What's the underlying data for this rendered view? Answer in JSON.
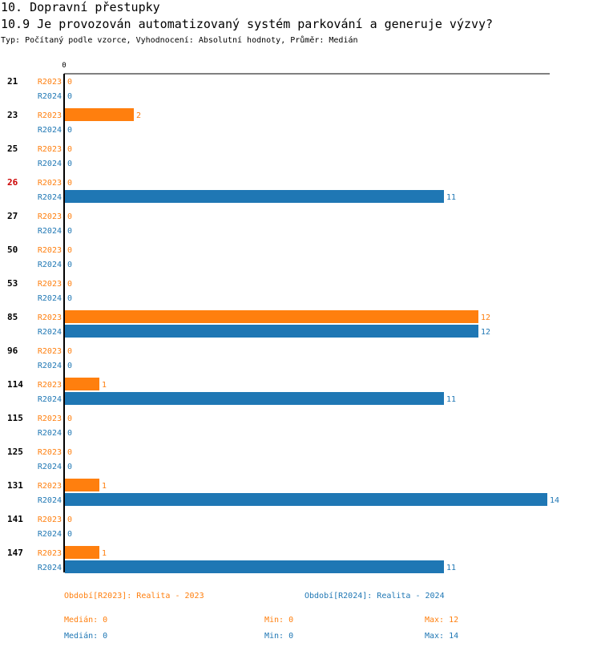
{
  "header": {
    "section_title": "10. Dopravní přestupky",
    "question": "10.9 Je provozován automatizovaný systém parkování a generuje výzvy?",
    "subtitle": "Typ: Počítaný podle vzorce, Vyhodnocení: Absolutní hodnoty, Průměr: Medián"
  },
  "colors": {
    "r2023": "#ff7f0e",
    "r2024": "#1f77b4",
    "highlight": "#cc0000"
  },
  "chart_data": {
    "type": "bar",
    "orientation": "horizontal",
    "axis_zero_label": "0",
    "xlim": [
      0,
      14
    ],
    "categories": [
      "21",
      "23",
      "25",
      "26",
      "27",
      "50",
      "53",
      "85",
      "96",
      "114",
      "115",
      "125",
      "131",
      "141",
      "147"
    ],
    "highlighted_category": "26",
    "series": [
      {
        "name": "R2023",
        "values": [
          0,
          2,
          0,
          0,
          0,
          0,
          0,
          12,
          0,
          1,
          0,
          0,
          1,
          0,
          1
        ]
      },
      {
        "name": "R2024",
        "values": [
          0,
          0,
          0,
          11,
          0,
          0,
          0,
          12,
          0,
          11,
          0,
          0,
          14,
          0,
          11
        ]
      }
    ]
  },
  "footer": {
    "legend_2023": "Období[R2023]: Realita - 2023",
    "legend_2024": "Období[R2024]: Realita - 2024",
    "stats_2023": {
      "median": "Medián: 0",
      "min": "Min: 0",
      "max": "Max: 12"
    },
    "stats_2024": {
      "median": "Medián: 0",
      "min": "Min: 0",
      "max": "Max: 14"
    }
  }
}
